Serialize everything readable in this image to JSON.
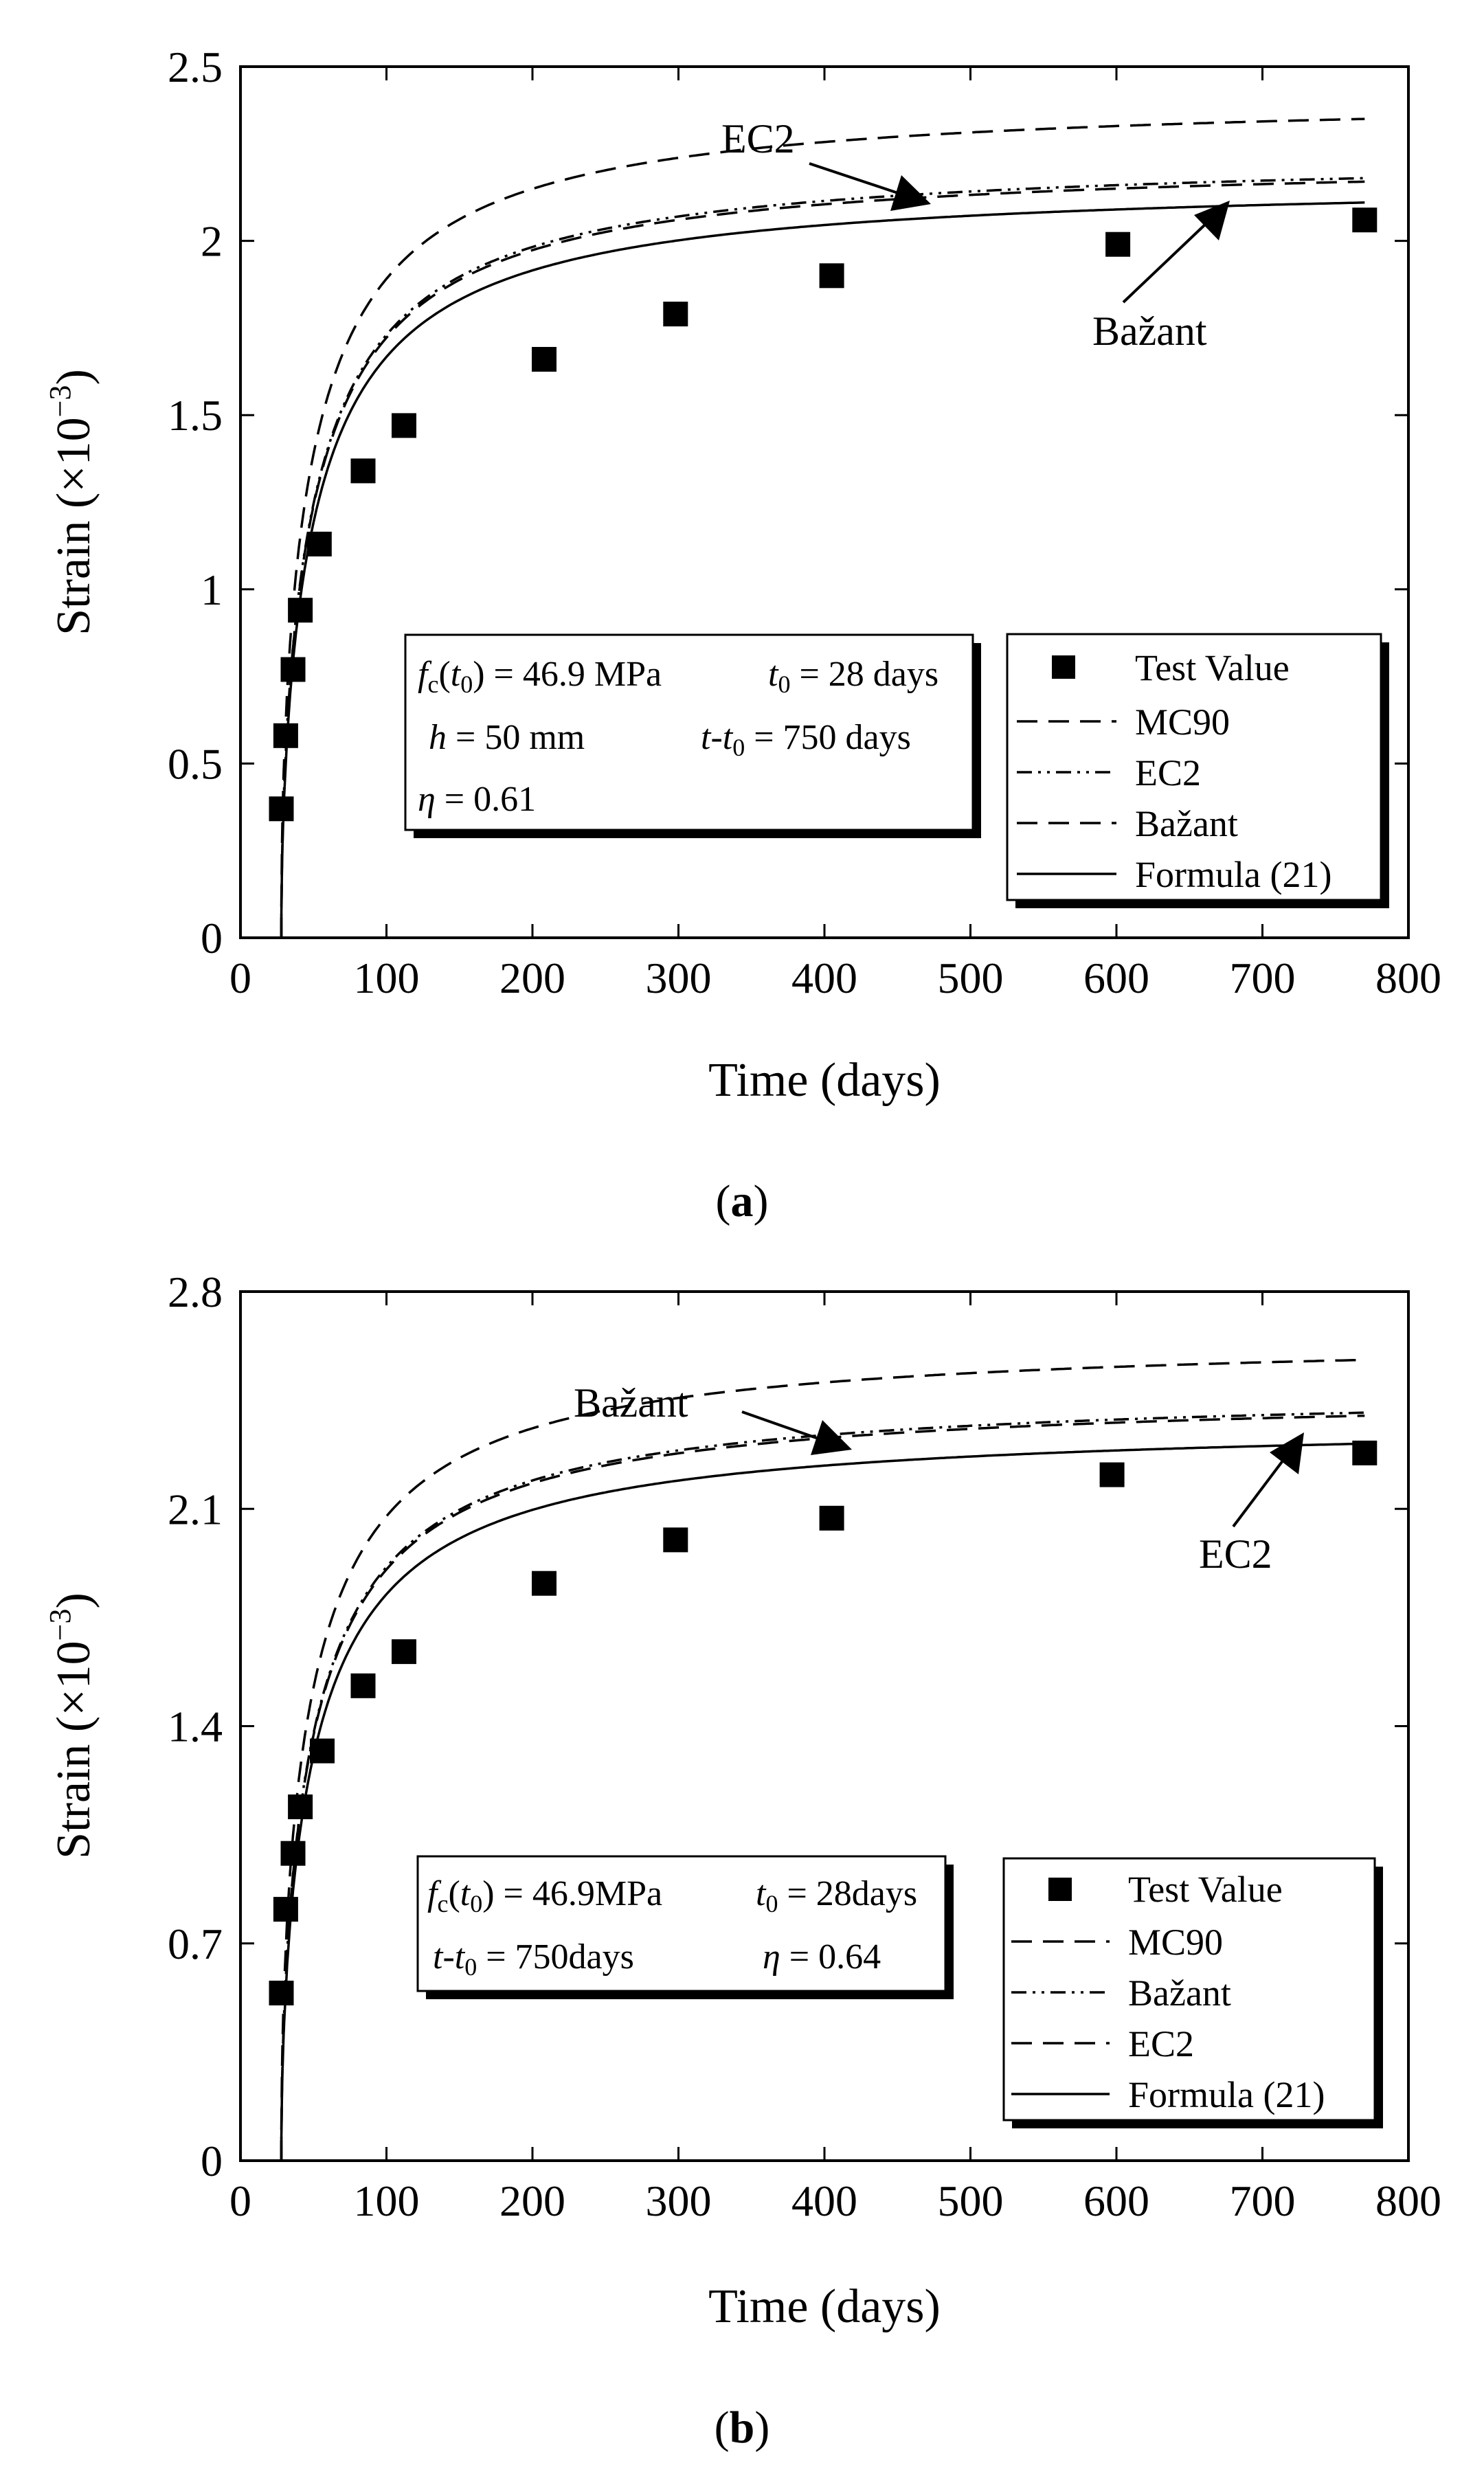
{
  "chart_data": [
    {
      "type": "line",
      "panel": "a",
      "caption": {
        "open": "(",
        "letter": "a",
        "close": ")"
      },
      "xlabel": "Time (days)",
      "ylabel": "Strain (×10",
      "ylabel_exp": "−3",
      "ylabel_close": ")",
      "xlim": [
        0,
        800
      ],
      "ylim": [
        0,
        2.5
      ],
      "xticks": [
        0,
        100,
        200,
        300,
        400,
        500,
        600,
        700,
        800
      ],
      "yticks": [
        0,
        0.5,
        1,
        1.5,
        2,
        2.5
      ],
      "ytick_labels": [
        "0",
        "0.5",
        "1",
        "1.5",
        "2",
        "2.5"
      ],
      "t0": 28,
      "test_values": {
        "x": [
          28,
          31,
          36,
          41,
          54,
          84,
          112,
          208,
          298,
          405,
          601,
          770
        ],
        "y": [
          0.37,
          0.58,
          0.77,
          0.94,
          1.13,
          1.34,
          1.47,
          1.66,
          1.79,
          1.9,
          1.99,
          2.06
        ]
      },
      "series": [
        {
          "name": "MC90",
          "style": "dashed",
          "final": 2.35,
          "tau": 50,
          "p": 0.47
        },
        {
          "name": "EC2",
          "style": "dashdot",
          "final": 2.18,
          "tau": 50,
          "p": 0.5
        },
        {
          "name": "Bažant",
          "style": "dashed",
          "final": 2.17,
          "tau": 50,
          "p": 0.5
        },
        {
          "name": "Formula (21)",
          "style": "solid",
          "final": 2.11,
          "tau": 50,
          "p": 0.51
        }
      ],
      "legend": [
        "Test Value",
        "MC90",
        "EC2",
        "Bažant",
        "Formula (21)"
      ],
      "info": {
        "line1": {
          "f": "f",
          "sub_c": "c",
          "open": "(",
          "t": "t",
          "sub_0": "0",
          "close": ")",
          "value": " = 46.9 MPa",
          "t_var": "t",
          "t_sub": "0",
          "t_value": " = 28 days"
        },
        "line2": {
          "h": "h",
          "h_value": " = 50 mm",
          "t_a": "t",
          "dash": "-",
          "t_b": "t",
          "t_sub": "0",
          "value": " = 750 days"
        },
        "line3": {
          "eta": "η",
          "value": " = 0.61"
        }
      },
      "callouts": [
        {
          "text": "EC2",
          "x_data": 420,
          "y_data": 2.05
        },
        {
          "text": "Bažant",
          "x_data": 720,
          "y_data": 2.12
        }
      ]
    },
    {
      "type": "line",
      "panel": "b",
      "caption": {
        "open": "(",
        "letter": "b",
        "close": ")"
      },
      "xlabel": "Time (days)",
      "ylabel": "Strain (×10",
      "ylabel_exp": "−3",
      "ylabel_close": ")",
      "xlim": [
        0,
        800
      ],
      "ylim": [
        0,
        2.8
      ],
      "xticks": [
        0,
        100,
        200,
        300,
        400,
        500,
        600,
        700,
        800
      ],
      "yticks": [
        0,
        0.7,
        1.4,
        2.1,
        2.8
      ],
      "ytick_labels": [
        "0",
        "0.7",
        "1.4",
        "2.1",
        "2.8"
      ],
      "t0": 28,
      "test_values": {
        "x": [
          28,
          31,
          36,
          41,
          56,
          84,
          112,
          208,
          298,
          405,
          597,
          770
        ],
        "y": [
          0.54,
          0.81,
          0.99,
          1.14,
          1.32,
          1.53,
          1.64,
          1.86,
          2.0,
          2.07,
          2.21,
          2.28
        ]
      },
      "series": [
        {
          "name": "MC90",
          "style": "dashed",
          "final": 2.58,
          "tau": 50,
          "p": 0.47
        },
        {
          "name": "Bažant",
          "style": "dashdot",
          "final": 2.41,
          "tau": 50,
          "p": 0.5
        },
        {
          "name": "EC2",
          "style": "dashed",
          "final": 2.4,
          "tau": 50,
          "p": 0.5
        },
        {
          "name": "Formula (21)",
          "style": "solid",
          "final": 2.31,
          "tau": 50,
          "p": 0.51
        }
      ],
      "legend": [
        "Test Value",
        "MC90",
        "Bažant",
        "EC2",
        "Formula (21)"
      ],
      "info": {
        "line1": {
          "f": "f",
          "sub_c": "c",
          "open": "(",
          "t": "t",
          "sub_0": "0",
          "close": ")",
          "value": " = 46.9MPa",
          "t_var": "t",
          "t_sub": "0",
          "t_value": " = 28days"
        },
        "line2": {
          "t_a": "t",
          "dash": "-",
          "t_b": "t",
          "t_sub": "0",
          "value": " = 750days",
          "eta": "η",
          "eta_value": " = 0.64"
        }
      },
      "callouts": [
        {
          "text": "Bažant",
          "x_data": 360,
          "y_data": 2.3
        },
        {
          "text": "EC2",
          "x_data": 730,
          "y_data": 2.31
        }
      ]
    }
  ]
}
